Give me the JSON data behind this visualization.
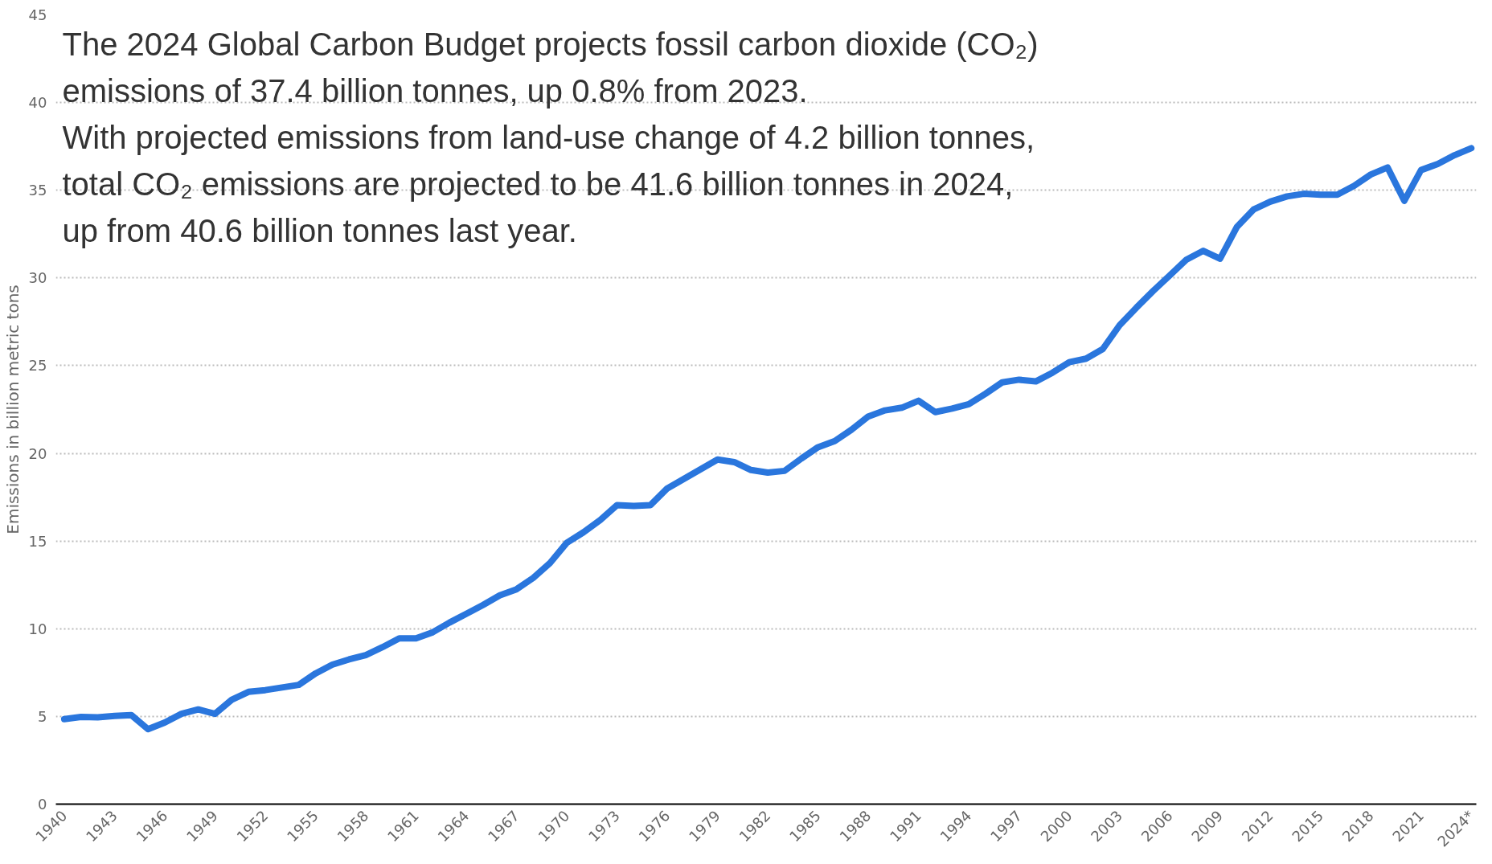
{
  "chart_data": {
    "type": "line",
    "ylabel": "Emissions in billion metric tons",
    "annotations": [
      "The 2024 Global Carbon Budget projects fossil carbon dioxide (CO₂)",
      "emissions of 37.4 billion tonnes, up 0.8% from 2023.",
      "With projected emissions from land-use change of 4.2 billion tonnes,",
      "total CO₂ emissions are projected to be 41.6 billion tonnes in 2024,",
      "up from 40.6 billion tonnes last year."
    ],
    "x": [
      1940,
      1941,
      1942,
      1943,
      1944,
      1945,
      1946,
      1947,
      1948,
      1949,
      1950,
      1951,
      1952,
      1953,
      1954,
      1955,
      1956,
      1957,
      1958,
      1959,
      1960,
      1961,
      1962,
      1963,
      1964,
      1965,
      1966,
      1967,
      1968,
      1969,
      1970,
      1971,
      1972,
      1973,
      1974,
      1975,
      1976,
      1977,
      1978,
      1979,
      1980,
      1981,
      1982,
      1983,
      1984,
      1985,
      1986,
      1987,
      1988,
      1989,
      1990,
      1991,
      1992,
      1993,
      1994,
      1995,
      1996,
      1997,
      1998,
      1999,
      2000,
      2001,
      2002,
      2003,
      2004,
      2005,
      2006,
      2007,
      2008,
      2009,
      2010,
      2011,
      2012,
      2013,
      2014,
      2015,
      2016,
      2017,
      2018,
      2019,
      2020,
      2021,
      2022,
      2023,
      2024
    ],
    "series": [
      {
        "color": "#2a76dd",
        "values": [
          4.85,
          4.97,
          4.95,
          5.03,
          5.08,
          4.27,
          4.65,
          5.15,
          5.4,
          5.15,
          5.95,
          6.4,
          6.5,
          6.65,
          6.8,
          7.45,
          7.95,
          8.25,
          8.5,
          8.95,
          9.45,
          9.45,
          9.8,
          10.35,
          10.85,
          11.35,
          11.9,
          12.25,
          12.9,
          13.75,
          14.9,
          15.5,
          16.2,
          17.05,
          17.0,
          17.05,
          18.0,
          18.55,
          19.1,
          19.65,
          19.5,
          19.05,
          18.9,
          19.0,
          19.7,
          20.35,
          20.7,
          21.35,
          22.1,
          22.45,
          22.6,
          23.0,
          22.35,
          22.55,
          22.8,
          23.4,
          24.05,
          24.2,
          24.1,
          24.6,
          25.2,
          25.4,
          25.95,
          27.3,
          28.3,
          29.25,
          30.15,
          31.05,
          31.55,
          31.1,
          32.9,
          33.9,
          34.35,
          34.65,
          34.8,
          34.75,
          34.75,
          35.25,
          35.9,
          36.3,
          34.4,
          36.15,
          36.5,
          37.0,
          37.4
        ]
      }
    ],
    "xlim": [
      1939.5,
      2024.3
    ],
    "xticks": [
      1940,
      1943,
      1946,
      1949,
      1952,
      1955,
      1958,
      1961,
      1964,
      1967,
      1970,
      1973,
      1976,
      1979,
      1982,
      1985,
      1988,
      1991,
      1994,
      1997,
      2000,
      2003,
      2006,
      2009,
      2012,
      2015,
      2018,
      2021,
      {
        "value": 2024,
        "label": "2024*"
      }
    ],
    "ylim": [
      0,
      45
    ],
    "yticks": [
      0,
      5,
      10,
      15,
      20,
      25,
      30,
      35,
      40,
      45
    ],
    "grid": "y",
    "line_style": "solid",
    "marker": "none"
  }
}
